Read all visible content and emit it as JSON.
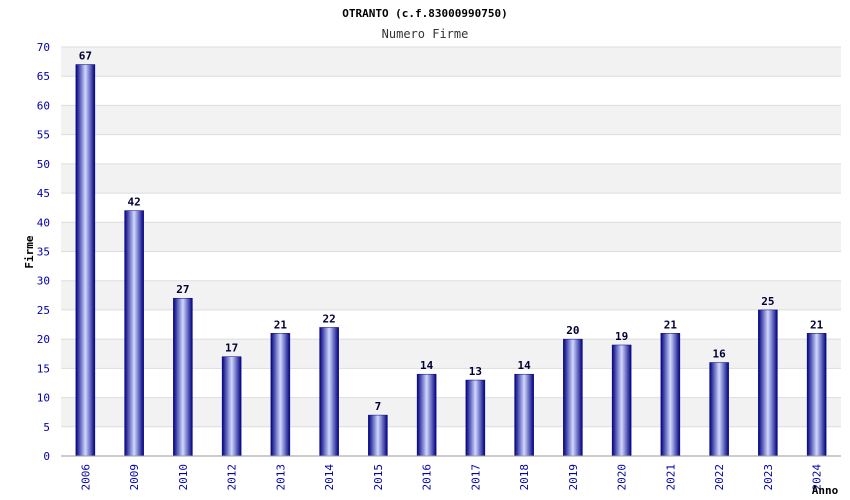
{
  "chart_data": {
    "type": "bar",
    "title": "OTRANTO (c.f.83000990750)",
    "subtitle": "Numero Firme",
    "xlabel": "Anno",
    "ylabel": "Firme",
    "ylim": [
      0,
      70
    ],
    "yticks": [
      0,
      5,
      10,
      15,
      20,
      25,
      30,
      35,
      40,
      45,
      50,
      55,
      60,
      65,
      70
    ],
    "categories": [
      "2006",
      "2009",
      "2010",
      "2012",
      "2013",
      "2014",
      "2015",
      "2016",
      "2017",
      "2018",
      "2019",
      "2020",
      "2021",
      "2022",
      "2023",
      "2024"
    ],
    "values": [
      67,
      42,
      27,
      17,
      21,
      22,
      7,
      14,
      13,
      14,
      20,
      19,
      21,
      16,
      25,
      21
    ],
    "grid": true,
    "colors": {
      "bar_dark": "#000080",
      "bar_light": "#d0d8ff",
      "band": "#f2f2f2",
      "tick_text": "#0000aa"
    }
  }
}
